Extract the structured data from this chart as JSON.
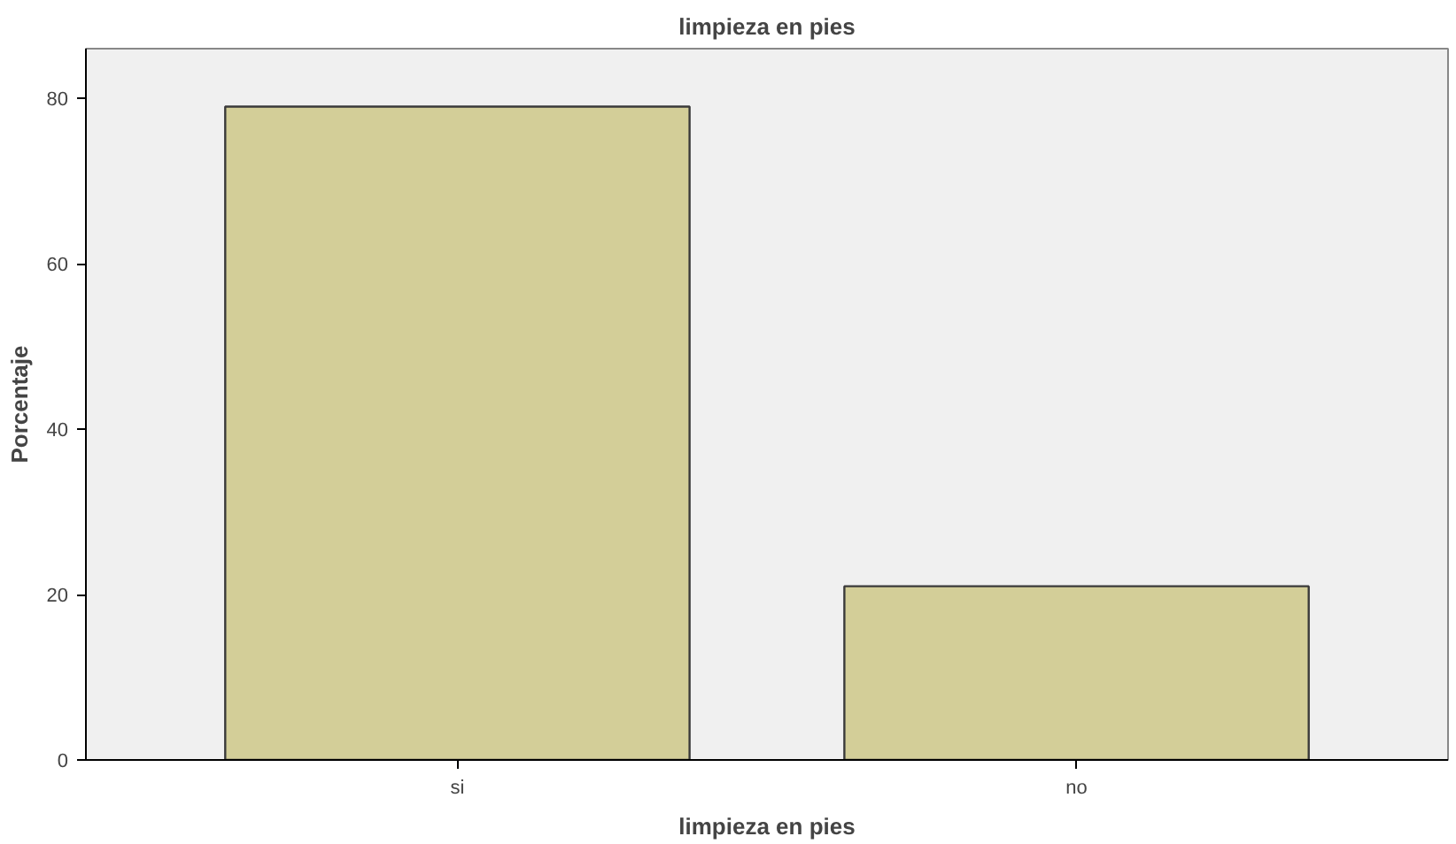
{
  "chart_data": {
    "type": "bar",
    "title": "limpieza en pies",
    "xlabel": "limpieza en pies",
    "ylabel": "Porcentaje",
    "categories": [
      "si",
      "no"
    ],
    "values": [
      79,
      21
    ],
    "color": "#d3ce98",
    "ylim": [
      0,
      86
    ],
    "yticks": [
      0,
      20,
      40,
      60,
      80
    ],
    "grid": false
  }
}
